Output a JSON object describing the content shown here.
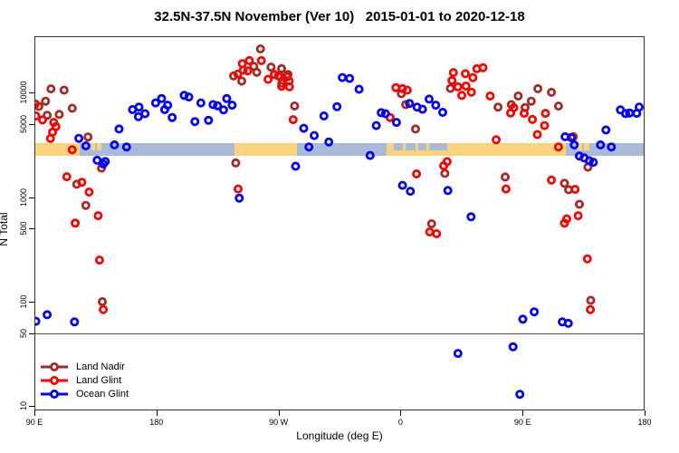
{
  "chart_data": {
    "type": "scatter",
    "title": "32.5N-37.5N November (Ver 10)   2015-01-01 to 2020-12-18",
    "xlabel": "Longitude (deg E)",
    "ylabel": "N Total",
    "y_scale": "log10",
    "xlim_unwrapped_deg": [
      90,
      540
    ],
    "ylim": [
      10,
      35000
    ],
    "grid": "off",
    "legend_position": "bottom-left-inside",
    "x_ticks": [
      {
        "lon": 90,
        "label": "90 E"
      },
      {
        "lon": 180,
        "label": "180"
      },
      {
        "lon": 270,
        "label": "90 W"
      },
      {
        "lon": 360,
        "label": "0"
      },
      {
        "lon": 450,
        "label": "90 E"
      },
      {
        "lon": 540,
        "label": "180"
      }
    ],
    "y_ticks": [
      {
        "v": 10000,
        "label": "10000"
      },
      {
        "v": 5000,
        "label": "5000"
      },
      {
        "v": 1000,
        "label": "1000"
      },
      {
        "v": 500,
        "label": "500"
      },
      {
        "v": 100,
        "label": "100"
      },
      {
        "v": 50,
        "label": "50"
      },
      {
        "v": 10,
        "label": "10"
      }
    ],
    "reference_line": {
      "value": 50,
      "color": "#4d4d4d"
    },
    "map_band": {
      "description": "World map strip for 32.5N-37.5N drawn across plot",
      "value_top": 3300,
      "value_bottom": 2500,
      "ocean_color": "#A9BBD8",
      "land_color": "#FBD27D",
      "segments": [
        {
          "from": 90,
          "to": 123.5,
          "type": "land"
        },
        {
          "from": 123.5,
          "to": 131.5,
          "type": "ocean"
        },
        {
          "from": 131.5,
          "to": 140,
          "type": "ocean"
        },
        {
          "from": 140,
          "to": 237.5,
          "type": "ocean"
        },
        {
          "from": 237.5,
          "to": 283.5,
          "type": "land"
        },
        {
          "from": 283.5,
          "to": 350,
          "type": "ocean"
        },
        {
          "from": 350,
          "to": 396.5,
          "type": "land"
        },
        {
          "from": 396.5,
          "to": 482,
          "type": "land"
        },
        {
          "from": 482,
          "to": 540,
          "type": "ocean"
        }
      ],
      "patches": [
        {
          "from": 132,
          "to": 134.8,
          "type": "land"
        },
        {
          "from": 135.8,
          "to": 139.6,
          "type": "land"
        },
        {
          "from": 355,
          "to": 362,
          "type": "ocean"
        },
        {
          "from": 364,
          "to": 371,
          "type": "ocean"
        },
        {
          "from": 373,
          "to": 379,
          "type": "ocean"
        },
        {
          "from": 381,
          "to": 394.5,
          "type": "ocean"
        },
        {
          "from": 490.5,
          "to": 494,
          "type": "land"
        },
        {
          "from": 495.5,
          "to": 499.5,
          "type": "land"
        }
      ]
    },
    "series": [
      {
        "name": "Land Nadir",
        "color": "#A52A26",
        "points": [
          [
            102.2,
            10900
          ],
          [
            111.9,
            10600
          ],
          [
            98.2,
            8300
          ],
          [
            93.3,
            7400
          ],
          [
            117.9,
            7100
          ],
          [
            99.4,
            6100
          ],
          [
            108.3,
            6200
          ],
          [
            129.5,
            3770
          ],
          [
            139.5,
            1900
          ],
          [
            121.2,
            1330
          ],
          [
            127.9,
            835
          ],
          [
            140.1,
            100
          ],
          [
            256.7,
            26300
          ],
          [
            251.8,
            17900
          ],
          [
            244.0,
            16450
          ],
          [
            254.0,
            15700
          ],
          [
            264.5,
            17600
          ],
          [
            272.3,
            17000
          ],
          [
            271.4,
            14200
          ],
          [
            277.0,
            14950
          ],
          [
            277.9,
            12950
          ],
          [
            272.5,
            12350
          ],
          [
            242.9,
            12950
          ],
          [
            236.9,
            14500
          ],
          [
            281.9,
            7470
          ],
          [
            238.5,
            2130
          ],
          [
            360.6,
            9800
          ],
          [
            363.8,
            7700
          ],
          [
            371.1,
            4500
          ],
          [
            392.7,
            1690
          ],
          [
            382.9,
            557
          ],
          [
            396.8,
            11000
          ],
          [
            431.9,
            7300
          ],
          [
            441.7,
            7700
          ],
          [
            446.8,
            9300
          ],
          [
            451.9,
            7200
          ],
          [
            456.4,
            8300
          ],
          [
            461.3,
            10950
          ],
          [
            471.3,
            10100
          ],
          [
            476.5,
            7450
          ],
          [
            437.2,
            1560
          ],
          [
            480.9,
            1360
          ],
          [
            484.0,
            1180
          ],
          [
            487.4,
            3800
          ],
          [
            498.2,
            1940
          ],
          [
            491.9,
            855
          ],
          [
            500.3,
            103
          ]
        ]
      },
      {
        "name": "Land Glint",
        "color": "#FF0000",
        "points": [
          [
            90.7,
            7800
          ],
          [
            91.1,
            6000
          ],
          [
            96.0,
            5500
          ],
          [
            104.3,
            5200
          ],
          [
            105.9,
            4750
          ],
          [
            103.4,
            4200
          ],
          [
            101.8,
            3650
          ],
          [
            117.9,
            2850
          ],
          [
            113.9,
            1570
          ],
          [
            125.0,
            1390
          ],
          [
            130.3,
            1120
          ],
          [
            137.0,
            665
          ],
          [
            120.1,
            565
          ],
          [
            138.0,
            250
          ],
          [
            140.8,
            84
          ],
          [
            243.3,
            19000
          ],
          [
            248.5,
            20300
          ],
          [
            257.4,
            20300
          ],
          [
            247.3,
            16200
          ],
          [
            240.0,
            15100
          ],
          [
            267.0,
            14950
          ],
          [
            262.3,
            13450
          ],
          [
            270.0,
            14500
          ],
          [
            276.4,
            14200
          ],
          [
            272.3,
            11550
          ],
          [
            278.1,
            11400
          ],
          [
            280.8,
            5530
          ],
          [
            240.2,
            1200
          ],
          [
            356.6,
            11200
          ],
          [
            361.5,
            10950
          ],
          [
            365.0,
            10600
          ],
          [
            352.3,
            5800
          ],
          [
            371.8,
            1670
          ],
          [
            391.8,
            2000
          ],
          [
            394.4,
            2190
          ],
          [
            381.5,
            465
          ],
          [
            386.6,
            447
          ],
          [
            399.0,
            15600
          ],
          [
            397.9,
            13100
          ],
          [
            402.3,
            11400
          ],
          [
            405.2,
            9430
          ],
          [
            407.8,
            15200
          ],
          [
            416.3,
            16960
          ],
          [
            420.8,
            17400
          ],
          [
            413.4,
            13950
          ],
          [
            408.3,
            11600
          ],
          [
            412.3,
            10150
          ],
          [
            426.1,
            9300
          ],
          [
            441.2,
            6400
          ],
          [
            443.5,
            7200
          ],
          [
            451.2,
            6350
          ],
          [
            457.3,
            5550
          ],
          [
            466.9,
            6350
          ],
          [
            466.2,
            4850
          ],
          [
            460.9,
            3980
          ],
          [
            430.6,
            3550
          ],
          [
            476.5,
            3030
          ],
          [
            437.8,
            1200
          ],
          [
            471.3,
            1460
          ],
          [
            480.9,
            565
          ],
          [
            488.7,
            1190
          ],
          [
            491.0,
            665
          ],
          [
            482.6,
            620
          ],
          [
            497.8,
            257
          ],
          [
            500.0,
            84
          ]
        ]
      },
      {
        "name": "Ocean Glint",
        "color": "#0000FF",
        "points": [
          [
            122.8,
            3660
          ],
          [
            127.9,
            3100
          ],
          [
            136.3,
            2260
          ],
          [
            140.8,
            2080
          ],
          [
            142.3,
            2200
          ],
          [
            149.0,
            3170
          ],
          [
            152.4,
            4500
          ],
          [
            158.0,
            3030
          ],
          [
            162.4,
            6900
          ],
          [
            167.1,
            7300
          ],
          [
            171.6,
            6300
          ],
          [
            166.7,
            5900
          ],
          [
            179.4,
            8000
          ],
          [
            183.8,
            8800
          ],
          [
            186.1,
            6900
          ],
          [
            188.3,
            7600
          ],
          [
            191.6,
            5800
          ],
          [
            200.5,
            9430
          ],
          [
            203.9,
            9100
          ],
          [
            208.4,
            5300
          ],
          [
            212.8,
            8000
          ],
          [
            218.4,
            5450
          ],
          [
            221.7,
            7700
          ],
          [
            225.1,
            7500
          ],
          [
            229.5,
            6850
          ],
          [
            231.8,
            8800
          ],
          [
            235.8,
            7600
          ],
          [
            241.1,
            980
          ],
          [
            99.4,
            75
          ],
          [
            91.1,
            65
          ],
          [
            119.6,
            64
          ],
          [
            282.6,
            1980
          ],
          [
            288.6,
            4570
          ],
          [
            292.4,
            3030
          ],
          [
            296.4,
            3900
          ],
          [
            303.5,
            6000
          ],
          [
            307.1,
            3380
          ],
          [
            313.1,
            7350
          ],
          [
            317.1,
            14000
          ],
          [
            322.5,
            13700
          ],
          [
            329.4,
            10800
          ],
          [
            337.6,
            2510
          ],
          [
            342.1,
            4850
          ],
          [
            345.8,
            6450
          ],
          [
            348.9,
            6300
          ],
          [
            357.0,
            5200
          ],
          [
            366.6,
            7900
          ],
          [
            372.2,
            7300
          ],
          [
            376.2,
            6950
          ],
          [
            381.1,
            8700
          ],
          [
            386.0,
            7600
          ],
          [
            391.1,
            6500
          ],
          [
            361.5,
            1300
          ],
          [
            367.3,
            1140
          ],
          [
            394.9,
            1160
          ],
          [
            402.3,
            32
          ],
          [
            412.0,
            650
          ],
          [
            443.0,
            37
          ],
          [
            448.0,
            13
          ],
          [
            450.2,
            68
          ],
          [
            458.6,
            80
          ],
          [
            479.3,
            64
          ],
          [
            483.7,
            62
          ],
          [
            481.4,
            3800
          ],
          [
            485.9,
            3720
          ],
          [
            488.1,
            3170
          ],
          [
            491.9,
            2480
          ],
          [
            495.4,
            2380
          ],
          [
            499.3,
            2230
          ],
          [
            502.2,
            2160
          ],
          [
            507.5,
            3170
          ],
          [
            511.5,
            4400
          ],
          [
            515.5,
            3030
          ],
          [
            522.2,
            6850
          ],
          [
            526.0,
            6330
          ],
          [
            528.9,
            6400
          ],
          [
            534.2,
            6350
          ],
          [
            536.0,
            7300
          ]
        ]
      }
    ]
  },
  "legend": {
    "items": [
      {
        "label": "Land Nadir",
        "color": "#A52A26"
      },
      {
        "label": "Land Glint",
        "color": "#FF0000"
      },
      {
        "label": "Ocean Glint",
        "color": "#0000FF"
      }
    ]
  }
}
